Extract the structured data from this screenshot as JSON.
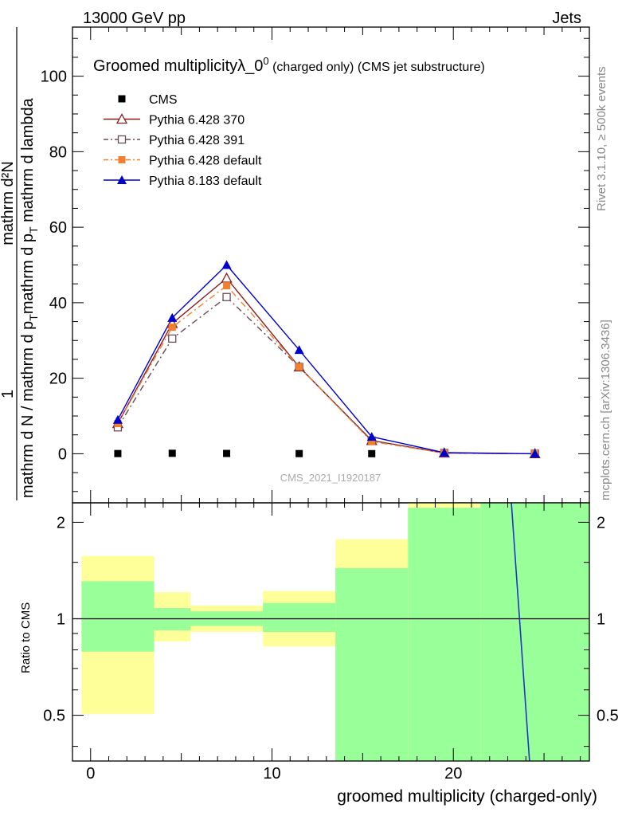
{
  "header": {
    "energy_label": "13000 GeV pp",
    "process_label": "Jets"
  },
  "side_labels": {
    "rivet": "Rivet 3.1.10, ≥ 500k events",
    "mcplots": "mcplots.cern.ch [arXiv:1306.3436]"
  },
  "chart_data": [
    {
      "type": "line",
      "panel": "main",
      "title": "Groomed multiplicityλ_0",
      "title_sup": "0",
      "title_suffix": " (charged only) (CMS jet substructure)",
      "ylabel_numerator": "1",
      "ylabel_numerator_right": "mathrm d²N",
      "ylabel_denominator": "mathrm d N / mathrm d p",
      "ylabel_denominator_sub": "T",
      "ylabel_denominator_tail": "mathrm d p",
      "ylabel_denominator_tail_sub": "T",
      "ylabel_denominator_end": " mathrm d lambda",
      "watermark": "CMS_2021_I1920187",
      "xlim": [
        -1,
        27.5
      ],
      "ylim": [
        -13,
        113
      ],
      "y_ticks": [
        0,
        20,
        40,
        60,
        80,
        100
      ],
      "y_tick_labels": [
        "0",
        "20",
        "40",
        "60",
        "80",
        "100"
      ],
      "legend_position": "top-left",
      "series": [
        {
          "name": "CMS",
          "color": "#000000",
          "marker": "square-filled",
          "dash": "none",
          "x": [
            1.5,
            4.5,
            7.5,
            11.5,
            15.5,
            19.5,
            24.5
          ],
          "values": [
            0.05,
            0.12,
            0.08,
            0.04,
            0.02,
            0.01,
            0.0
          ]
        },
        {
          "name": "Pythia 6.428 370",
          "color": "#8b1a1a",
          "marker": "triangle-open",
          "dash": "none",
          "x": [
            1.5,
            4.5,
            7.5,
            11.5,
            15.5,
            19.5,
            24.5
          ],
          "values": [
            8.0,
            34.5,
            46.5,
            23.0,
            3.5,
            0.2,
            0.0
          ]
        },
        {
          "name": "Pythia 6.428 391",
          "color": "#6b4a5a",
          "marker": "square-open",
          "dash": "dashdot",
          "x": [
            1.5,
            4.5,
            7.5,
            11.5,
            15.5,
            19.5,
            24.5
          ],
          "values": [
            7.0,
            30.5,
            41.5,
            23.0,
            3.5,
            0.2,
            0.0
          ]
        },
        {
          "name": "Pythia 6.428 default",
          "color": "#f08030",
          "marker": "square-filled",
          "dash": "dashdot",
          "x": [
            1.5,
            4.5,
            7.5,
            11.5,
            15.5,
            19.5,
            24.5
          ],
          "values": [
            8.0,
            33.5,
            44.5,
            23.0,
            3.2,
            0.2,
            0.0
          ]
        },
        {
          "name": "Pythia 8.183 default",
          "color": "#0000cc",
          "marker": "triangle-filled",
          "dash": "none",
          "x": [
            1.5,
            4.5,
            7.5,
            11.5,
            15.5,
            19.5,
            24.5
          ],
          "values": [
            9.0,
            36.0,
            50.0,
            27.5,
            4.5,
            0.3,
            0.0
          ]
        }
      ]
    },
    {
      "type": "area",
      "panel": "ratio",
      "ylabel": "Ratio to CMS",
      "xlabel": "groomed multiplicity (charged-only)",
      "xlim": [
        -1,
        27.5
      ],
      "ylim": [
        0.36,
        2.3
      ],
      "y_scale": "log",
      "reference": 1.0,
      "y_ticks": [
        0.5,
        1,
        2
      ],
      "y_tick_labels": [
        "0.5",
        "1",
        "2"
      ],
      "x_ticks": [
        0,
        10,
        20
      ],
      "x_tick_labels": [
        "0",
        "10",
        "20"
      ],
      "bands": [
        {
          "xlo": -0.5,
          "xhi": 3.5,
          "green": [
            0.79,
            1.31
          ],
          "yellow": [
            0.505,
            1.57
          ]
        },
        {
          "xlo": 3.5,
          "xhi": 5.5,
          "green": [
            0.92,
            1.08
          ],
          "yellow": [
            0.85,
            1.21
          ]
        },
        {
          "xlo": 5.5,
          "xhi": 9.5,
          "green": [
            0.95,
            1.055
          ],
          "yellow": [
            0.91,
            1.1
          ]
        },
        {
          "xlo": 9.5,
          "xhi": 13.5,
          "green": [
            0.91,
            1.12
          ],
          "yellow": [
            0.82,
            1.22
          ]
        },
        {
          "xlo": 13.5,
          "xhi": 17.5,
          "green": [
            0.36,
            1.44
          ],
          "yellow": [
            0.36,
            1.77
          ]
        },
        {
          "xlo": 17.5,
          "xhi": 21.5,
          "green": [
            0.36,
            2.22
          ],
          "yellow": [
            0.36,
            2.3
          ]
        },
        {
          "xlo": 21.5,
          "xhi": 27.5,
          "green": [
            0.36,
            2.3
          ],
          "yellow": [
            0.36,
            2.3
          ]
        }
      ],
      "ratio_line": {
        "color": "#2233cc",
        "x": [
          23.2,
          24.2
        ],
        "values": [
          2.3,
          0.36
        ]
      }
    }
  ]
}
